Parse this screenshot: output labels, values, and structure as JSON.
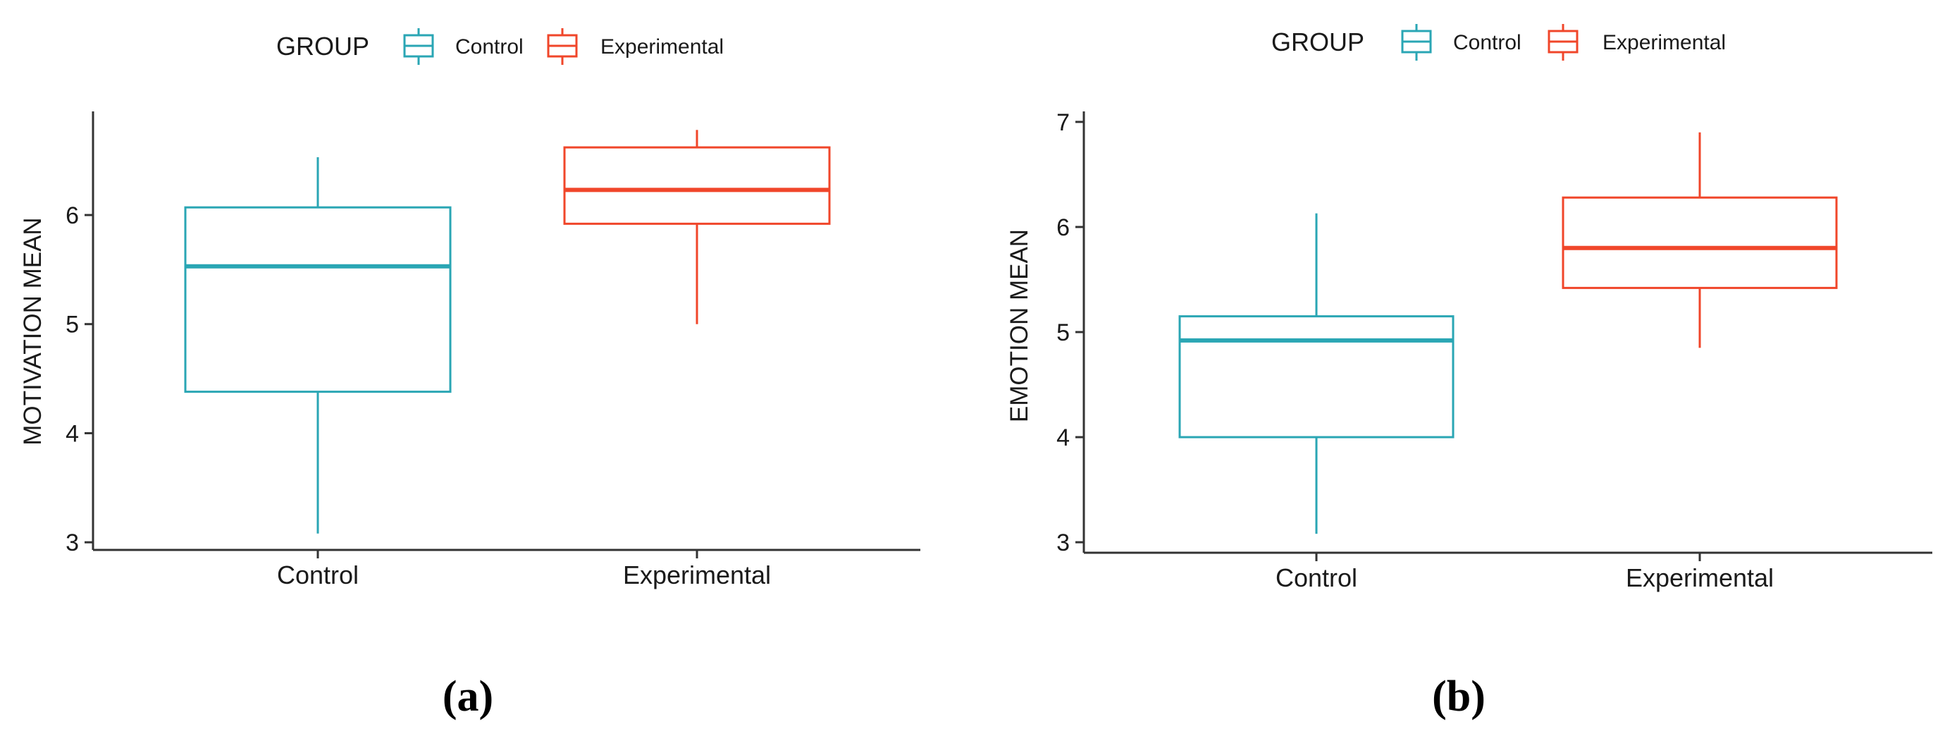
{
  "chart_data": [
    {
      "type": "boxplot",
      "panel_label": "(a)",
      "title": "",
      "xlabel": "",
      "ylabel": "MOTIVATION MEAN",
      "ylim": [
        2.93,
        6.95
      ],
      "yticks": [
        3,
        4,
        5,
        6
      ],
      "categories": [
        "Control",
        "Experimental"
      ],
      "legend": {
        "title": "GROUP",
        "entries": [
          "Control",
          "Experimental"
        ],
        "placement": "top"
      },
      "series": [
        {
          "name": "Control",
          "min": 3.08,
          "q1": 4.38,
          "median": 5.53,
          "q3": 6.07,
          "max": 6.53
        },
        {
          "name": "Experimental",
          "min": 5.0,
          "q1": 5.92,
          "median": 6.23,
          "q3": 6.62,
          "max": 6.78
        }
      ]
    },
    {
      "type": "boxplot",
      "panel_label": "(b)",
      "title": "",
      "xlabel": "",
      "ylabel": "EMOTION MEAN",
      "ylim": [
        2.9,
        7.1
      ],
      "yticks": [
        3,
        4,
        5,
        6,
        7
      ],
      "categories": [
        "Control",
        "Experimental"
      ],
      "legend": {
        "title": "GROUP",
        "entries": [
          "Control",
          "Experimental"
        ],
        "placement": "top"
      },
      "series": [
        {
          "name": "Control",
          "min": 3.08,
          "q1": 4.0,
          "median": 4.92,
          "q3": 5.15,
          "max": 6.13
        },
        {
          "name": "Experimental",
          "min": 4.85,
          "q1": 5.42,
          "median": 5.8,
          "q3": 6.28,
          "max": 6.9
        }
      ]
    }
  ],
  "colors": {
    "Control": "#2aa6b4",
    "Experimental": "#f0462a",
    "axis": "#333333"
  }
}
